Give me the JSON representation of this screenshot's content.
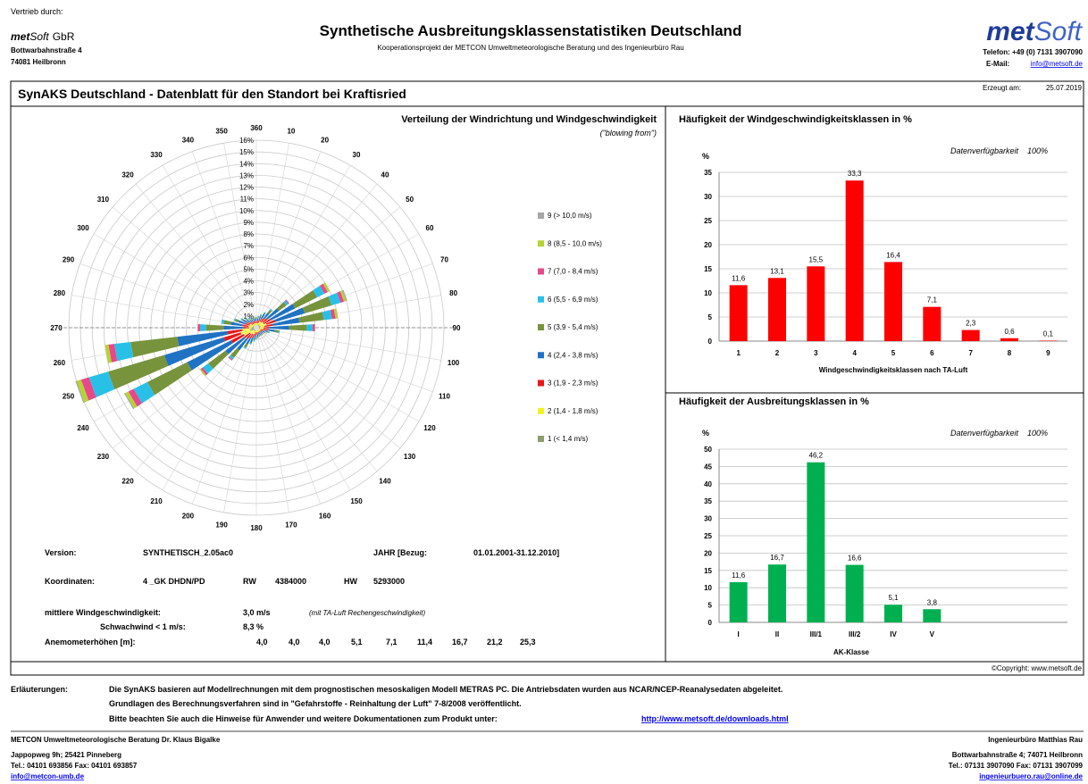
{
  "header": {
    "distributor_label": "Vertrieb durch:",
    "brand_a": "met",
    "brand_b": "Soft",
    "brand_suffix": "GbR",
    "street": "Bottwarbahnstraße 4",
    "city": "74081 Heilbronn",
    "title": "Synthetische Ausbreitungsklassenstatistiken Deutschland",
    "subtitle": "Kooperationsprojekt der METCON Umweltmeteorologische Beratung und des Ingenieurbüro Rau",
    "logo_a": "met",
    "logo_b": "Soft",
    "phone": "Telefon: +49 (0) 7131 3907090",
    "email_label": "E-Mail:",
    "email": "info@metsoft.de"
  },
  "sheet": {
    "title": "SynAKS Deutschland - Datenblatt für den Standort bei Kraftisried",
    "created_label": "Erzeugt am:",
    "created": "25.07.2019",
    "copyright": "©Copyright: www.metsoft.de"
  },
  "info": {
    "version_label": "Version:",
    "version": "SYNTHETISCH_2.05ac0",
    "year_label": "JAHR  [Bezug:",
    "year_range": "01.01.2001-31.12.2010]",
    "coord_label": "Koordinaten:",
    "coord_system": "4 _GK  DHDN/PD",
    "rw_label": "RW",
    "rw": "4384000",
    "hw_label": "HW",
    "hw": "5293000",
    "wind_label": "mittlere Windgeschwindigkeit:",
    "wind": "3,0  m/s",
    "wind_note": "(mit TA-Luft Rechengeschwindigkeit)",
    "calm_label": "Schwachwind  < 1 m/s:",
    "calm": "8,3  %",
    "heights_label": "Anemometerhöhen [m]:",
    "heights": [
      "4,0",
      "4,0",
      "4,0",
      "5,1",
      "7,1",
      "11,4",
      "16,7",
      "21,2",
      "25,3"
    ]
  },
  "notes": {
    "label": "Erläuterungen:",
    "lines": [
      "Die SynAKS basieren auf Modellrechnungen mit dem prognostischen mesoskaligen Modell METRAS PC. Die Antriebsdaten wurden aus NCAR/NCEP-Reanalysedaten abgeleitet.",
      "Grundlagen des Berechnungsverfahren sind in \"Gefahrstoffe - Reinhaltung der Luft\" 7-8/2008 veröffentlicht.",
      "Bitte beachten Sie auch die Hinweise für Anwender und weitere Dokumentationen zum Produkt unter:"
    ],
    "link": "http://www.metsoft.de/downloads.html"
  },
  "footer": {
    "left": [
      "METCON Umweltmeteorologische Beratung Dr. Klaus Bigalke",
      "Jappopweg 9h; 25421 Pinneberg",
      "Tel.: 04101 693856    Fax: 04101 693857",
      "info@metcon-umb.de"
    ],
    "right": [
      "Ingenieurbüro Matthias Rau",
      "Bottwarbahnstraße 4; 74071 Heilbronn",
      "Tel.: 07131 3907090    Fax: 07131 3907099",
      "ingenieurbuero.rau@online.de"
    ]
  },
  "chart_data": [
    {
      "type": "windrose",
      "title": "Verteilung der Windrichtung und Windgeschwindigkeit",
      "subtitle": "(\"blowing from\")",
      "directions": [
        10,
        20,
        30,
        40,
        50,
        60,
        70,
        80,
        90,
        100,
        110,
        120,
        130,
        140,
        150,
        160,
        170,
        180,
        190,
        200,
        210,
        220,
        230,
        240,
        250,
        260,
        270,
        280,
        290,
        300,
        310,
        320,
        330,
        340,
        350,
        360
      ],
      "rlim": [
        0,
        16
      ],
      "rticks": [
        {
          "value": 1,
          "label": "1%"
        },
        {
          "value": 2,
          "label": "2%"
        },
        {
          "value": 3,
          "label": "3%"
        },
        {
          "value": 4,
          "label": "4%"
        },
        {
          "value": 5,
          "label": "5%"
        },
        {
          "value": 6,
          "label": "6%"
        },
        {
          "value": 7,
          "label": "7%"
        },
        {
          "value": 8,
          "label": "8%"
        },
        {
          "value": 9,
          "label": "9%"
        },
        {
          "value": 10,
          "label": "10%"
        },
        {
          "value": 11,
          "label": "11%"
        },
        {
          "value": 12,
          "label": "12%"
        },
        {
          "value": 13,
          "label": "13%"
        },
        {
          "value": 14,
          "label": "14%"
        },
        {
          "value": 15,
          "label": "15%"
        },
        {
          "value": 16,
          "label": "16%"
        }
      ],
      "series": [
        {
          "name": "1 (< 1,4 m/s)",
          "color": "#8c9c6c",
          "values": [
            0.2,
            0.2,
            0.3,
            0.3,
            0.3,
            0.3,
            0.4,
            0.3,
            0.3,
            0.3,
            0.2,
            0.2,
            0.2,
            0.2,
            0.2,
            0.2,
            0.2,
            0.2,
            0.2,
            0.3,
            0.3,
            0.3,
            0.3,
            0.5,
            0.6,
            0.5,
            0.3,
            0.3,
            0.3,
            0.3,
            0.2,
            0.2,
            0.2,
            0.2,
            0.2,
            0.2
          ]
        },
        {
          "name": "2 (1,4 - 1,8 m/s)",
          "color": "#f2f21e",
          "values": [
            0.2,
            0.2,
            0.3,
            0.3,
            0.4,
            0.4,
            0.5,
            0.4,
            0.3,
            0.3,
            0.2,
            0.2,
            0.2,
            0.2,
            0.2,
            0.2,
            0.2,
            0.2,
            0.2,
            0.3,
            0.3,
            0.4,
            0.4,
            0.7,
            0.8,
            0.7,
            0.3,
            0.4,
            0.3,
            0.3,
            0.2,
            0.2,
            0.2,
            0.2,
            0.2,
            0.2
          ]
        },
        {
          "name": "3 (1,9 - 2,3 m/s)",
          "color": "#e81818",
          "values": [
            0.2,
            0.3,
            0.3,
            0.4,
            0.5,
            0.7,
            0.8,
            0.7,
            0.5,
            0.4,
            0.3,
            0.2,
            0.1,
            0.1,
            0.1,
            0.1,
            0.2,
            0.2,
            0.3,
            0.3,
            0.4,
            0.5,
            0.6,
            1.2,
            1.5,
            1.3,
            0.5,
            0.5,
            0.4,
            0.3,
            0.3,
            0.2,
            0.2,
            0.2,
            0.2,
            0.2
          ]
        },
        {
          "name": "4 (2,4 - 3,8 m/s)",
          "color": "#1f72c4",
          "values": [
            0.2,
            0.3,
            0.4,
            0.6,
            1.2,
            2.3,
            2.6,
            2.3,
            1.7,
            0.6,
            0.3,
            0.2,
            0.2,
            0.2,
            0.2,
            0.2,
            0.2,
            0.2,
            0.3,
            0.4,
            0.6,
            1.2,
            2.0,
            4.2,
            5.3,
            4.3,
            1.7,
            1.0,
            0.6,
            0.4,
            0.3,
            0.2,
            0.2,
            0.2,
            0.2,
            0.2
          ]
        },
        {
          "name": "5 (3,9 - 5,4 m/s)",
          "color": "#77933c",
          "values": [
            0.1,
            0.1,
            0.1,
            0.3,
            0.8,
            2.1,
            2.4,
            2.1,
            1.5,
            0.3,
            0.1,
            0.1,
            0.1,
            0.1,
            0.1,
            0.1,
            0.1,
            0.1,
            0.1,
            0.1,
            0.3,
            0.8,
            1.8,
            3.8,
            5.0,
            4.0,
            1.5,
            0.6,
            0.3,
            0.1,
            0.1,
            0.1,
            0.1,
            0.1,
            0.1,
            0.1
          ]
        },
        {
          "name": "6 (5,5 - 6,9 m/s)",
          "color": "#29c0e8",
          "values": [
            0.1,
            0.1,
            0.1,
            0.1,
            0.2,
            0.7,
            0.8,
            0.7,
            0.5,
            0.1,
            0.1,
            0,
            0,
            0,
            0,
            0,
            0,
            0.1,
            0.1,
            0.1,
            0.1,
            0.2,
            0.6,
            1.3,
            1.7,
            1.4,
            0.5,
            0.2,
            0.1,
            0.1,
            0.1,
            0.1,
            0.1,
            0,
            0,
            0
          ]
        },
        {
          "name": "7 (7,0 - 8,4 m/s)",
          "color": "#e8488a",
          "values": [
            0,
            0,
            0,
            0,
            0.1,
            0.3,
            0.3,
            0.3,
            0.2,
            0,
            0,
            0,
            0,
            0,
            0,
            0,
            0,
            0,
            0,
            0,
            0,
            0.1,
            0.2,
            0.5,
            0.7,
            0.5,
            0.2,
            0,
            0,
            0,
            0,
            0,
            0,
            0,
            0,
            0
          ]
        },
        {
          "name": "8 (8,5 - 10,0 m/s)",
          "color": "#b5d334",
          "values": [
            0,
            0,
            0,
            0,
            0,
            0.2,
            0.2,
            0.2,
            0,
            0,
            0,
            0,
            0,
            0,
            0,
            0,
            0,
            0,
            0,
            0,
            0,
            0,
            0.1,
            0.3,
            0.4,
            0.3,
            0,
            0,
            0,
            0,
            0,
            0,
            0,
            0,
            0,
            0
          ]
        },
        {
          "name": "9 (> 10,0 m/s)",
          "color": "#a6a6a6",
          "values": [
            0,
            0,
            0,
            0,
            0,
            0,
            0.1,
            0,
            0,
            0,
            0,
            0,
            0,
            0,
            0,
            0,
            0,
            0,
            0,
            0,
            0,
            0,
            0,
            0.1,
            0.1,
            0,
            0,
            0,
            0,
            0,
            0,
            0,
            0,
            0,
            0,
            0
          ]
        }
      ]
    },
    {
      "type": "bar",
      "title": "Häufigkeit der Windgeschwindigkeitsklassen in %",
      "availability_label": "Datenverfügbarkeit",
      "availability": "100%",
      "ylabel": "%",
      "xlabel": "Windgeschwindigkeitsklassen nach TA-Luft",
      "categories": [
        "1",
        "2",
        "3",
        "4",
        "5",
        "6",
        "7",
        "8",
        "9"
      ],
      "values": [
        11.6,
        13.1,
        15.5,
        33.3,
        16.4,
        7.1,
        2.3,
        0.6,
        0.1
      ],
      "value_labels": [
        "11,6",
        "13,1",
        "15,5",
        "33,3",
        "16,4",
        "7,1",
        "2,3",
        "0,6",
        "0,1"
      ],
      "color": "#ff0000",
      "ylim": [
        0,
        35
      ],
      "yticks": [
        0,
        5,
        10,
        15,
        20,
        25,
        30,
        35
      ],
      "grid": true
    },
    {
      "type": "bar",
      "title": "Häufigkeit der Ausbreitungsklassen in %",
      "availability_label": "Datenverfügbarkeit",
      "availability": "100%",
      "ylabel": "%",
      "xlabel": "AK-Klasse",
      "categories": [
        "I",
        "II",
        "III/1",
        "III/2",
        "IV",
        "V"
      ],
      "values": [
        11.6,
        16.7,
        46.2,
        16.6,
        5.1,
        3.8
      ],
      "value_labels": [
        "11,6",
        "16,7",
        "46,2",
        "16,6",
        "5,1",
        "3,8"
      ],
      "color": "#00b050",
      "ylim": [
        0,
        50
      ],
      "yticks": [
        0,
        5,
        10,
        15,
        20,
        25,
        30,
        35,
        40,
        45,
        50
      ],
      "grid": true
    }
  ]
}
